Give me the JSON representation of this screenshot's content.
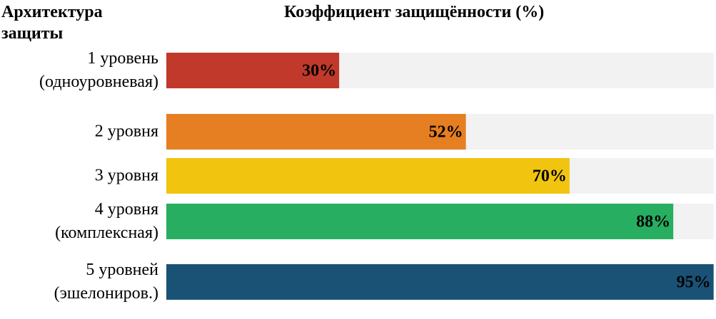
{
  "chart_data": {
    "type": "hbar",
    "category_title": "Архитектура защиты",
    "title": "Коэффициент защищённости (%)",
    "categories": [
      "1 уровень (одноуровневая)",
      "2 уровня",
      "3 уровня",
      "4 уровня (комплексная)",
      "5 уровней (эшелониров.)"
    ],
    "values": [
      30,
      52,
      70,
      88,
      95
    ],
    "value_labels": [
      "30%",
      "52%",
      "70%",
      "88%",
      "95%"
    ],
    "colors": [
      "#c0392b",
      "#e67e22",
      "#f1c40f",
      "#27ae60",
      "#1a5276"
    ]
  }
}
